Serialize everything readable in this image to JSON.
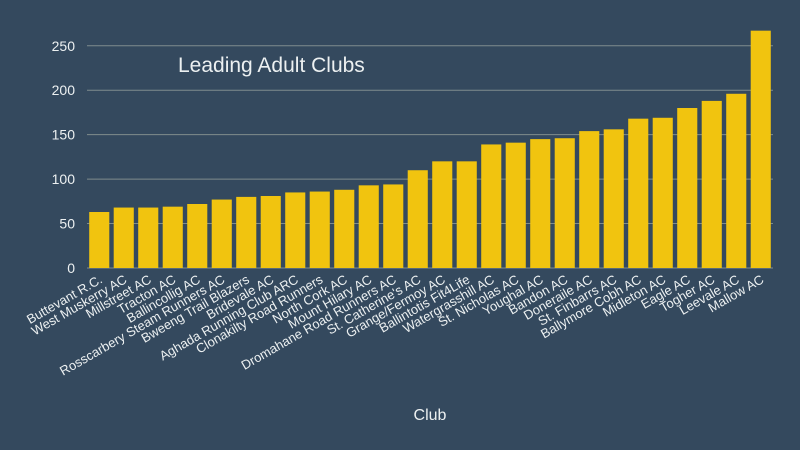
{
  "chart_data": {
    "type": "bar",
    "title": "Leading Adult Clubs",
    "xlabel": "Club",
    "ylabel": "",
    "ylim": [
      0,
      270
    ],
    "yticks": [
      0,
      50,
      100,
      150,
      200,
      250
    ],
    "grid": true,
    "legend": "none",
    "categories": [
      "Buttevant R.C.",
      "West Muskerry AC",
      "Millstreet AC",
      "Tracton AC",
      "Ballincollig AC",
      "Rosscarbery Steam Runners AC",
      "Bweeng Trail Blazers",
      "Bridevale AC",
      "Aghada Running Club ARC",
      "Clonakilty Road Runners",
      "North Cork AC",
      "Mount Hilary AC",
      "Dromahane Road Runners AC",
      "St. Catherine's AC",
      "Grange/Fermoy AC",
      "Ballintotis Fit4Life",
      "Watergrasshill AC",
      "St. Nicholas AC",
      "Youghal AC",
      "Bandon AC",
      "Doneraile AC",
      "St. Finbarrs AC",
      "Ballymore Cobh AC",
      "Midleton AC",
      "Eagle AC",
      "Togher AC",
      "Leevale AC",
      "Mallow AC"
    ],
    "values": [
      63,
      68,
      68,
      69,
      72,
      77,
      80,
      81,
      85,
      86,
      88,
      93,
      94,
      110,
      120,
      120,
      139,
      141,
      145,
      146,
      154,
      156,
      168,
      169,
      180,
      188,
      196,
      267
    ],
    "colors": {
      "background": "#34495e",
      "bar": "#f1c40f",
      "grid": "#7f8c8d",
      "text": "#ecf0f1"
    }
  }
}
